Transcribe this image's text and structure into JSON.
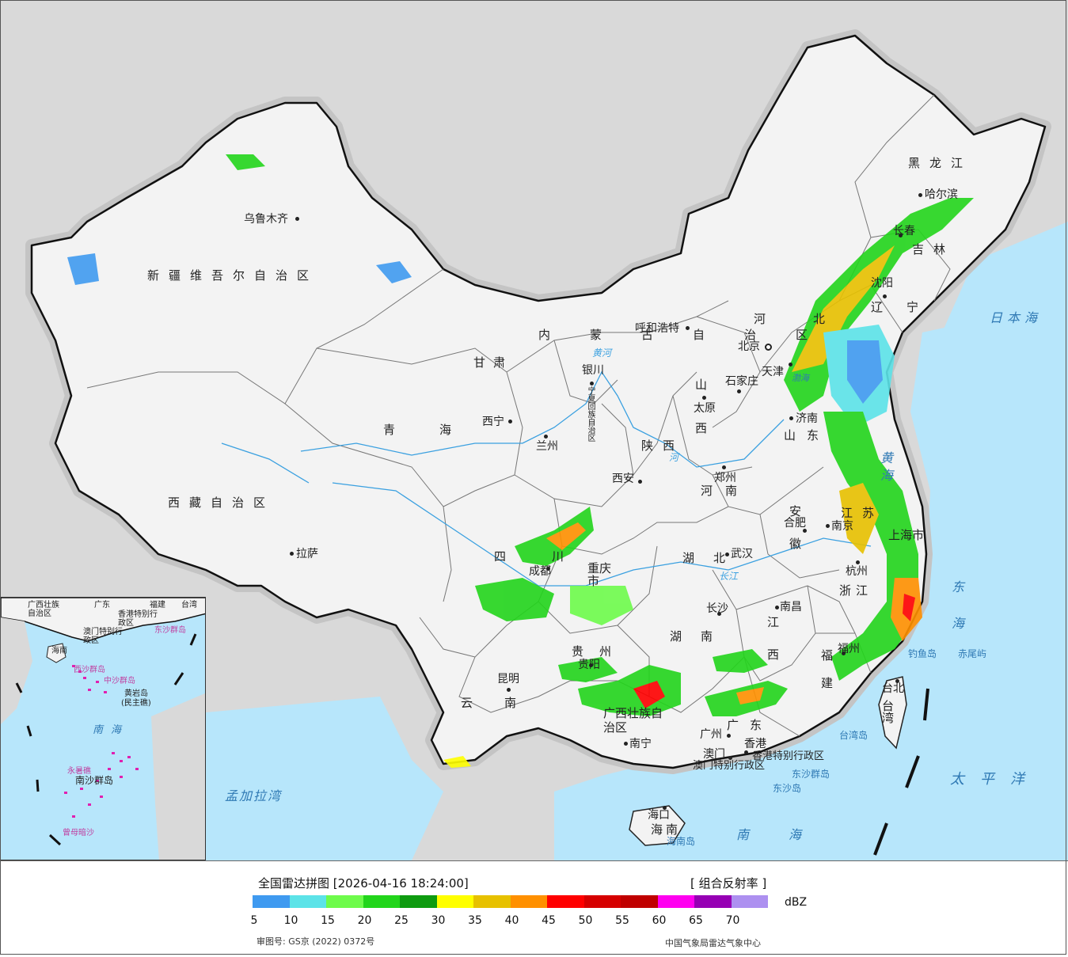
{
  "map": {
    "provinces": [
      {
        "id": "xinjiang",
        "name": "新疆维吾尔自治区"
      },
      {
        "id": "xizang",
        "name": "西藏自治区"
      },
      {
        "id": "qinghai",
        "name": "青海"
      },
      {
        "id": "gansu",
        "name": "甘肃"
      },
      {
        "id": "neimenggu",
        "name": "内蒙古自治区"
      },
      {
        "id": "heilongjiang",
        "name": "黑龙江"
      },
      {
        "id": "jilin",
        "name": "吉林"
      },
      {
        "id": "liaoning",
        "name": "辽宁"
      },
      {
        "id": "hebei",
        "name": "河北"
      },
      {
        "id": "shanxi",
        "name": "山西"
      },
      {
        "id": "shaanxi",
        "name": "陕西"
      },
      {
        "id": "henan",
        "name": "河南"
      },
      {
        "id": "shandong",
        "name": "山东"
      },
      {
        "id": "jiangsu",
        "name": "江苏"
      },
      {
        "id": "anhui",
        "name": "安徽"
      },
      {
        "id": "hubei",
        "name": "湖北"
      },
      {
        "id": "hunan",
        "name": "湖南"
      },
      {
        "id": "jiangxi",
        "name": "江西"
      },
      {
        "id": "zhejiang",
        "name": "浙江"
      },
      {
        "id": "fujian",
        "name": "福建"
      },
      {
        "id": "guangdong",
        "name": "广东"
      },
      {
        "id": "guangxi",
        "name": "广西壮族自治区"
      },
      {
        "id": "guizhou",
        "name": "贵州"
      },
      {
        "id": "yunnan",
        "name": "云南"
      },
      {
        "id": "sichuan",
        "name": "四川"
      },
      {
        "id": "chongqing",
        "name": "重庆市"
      },
      {
        "id": "ningxia",
        "name": "宁夏回族自治区"
      },
      {
        "id": "taiwan",
        "name": "台湾"
      },
      {
        "id": "hainan",
        "name": "海南"
      },
      {
        "id": "shanghai",
        "name": "上海市"
      },
      {
        "id": "hongkong",
        "name": "香港特别行政区"
      },
      {
        "id": "macao",
        "name": "澳门特别行政区"
      }
    ],
    "cities": [
      {
        "id": "urumqi",
        "name": "乌鲁木齐"
      },
      {
        "id": "lhasa",
        "name": "拉萨"
      },
      {
        "id": "xining",
        "name": "西宁"
      },
      {
        "id": "lanzhou",
        "name": "兰州"
      },
      {
        "id": "yinchuan",
        "name": "银川"
      },
      {
        "id": "hohhot",
        "name": "呼和浩特"
      },
      {
        "id": "beijing",
        "name": "北京"
      },
      {
        "id": "tianjin",
        "name": "天津"
      },
      {
        "id": "shijiazhuang",
        "name": "石家庄"
      },
      {
        "id": "taiyuan",
        "name": "太原"
      },
      {
        "id": "jinan",
        "name": "济南"
      },
      {
        "id": "shenyang",
        "name": "沈阳"
      },
      {
        "id": "changchun",
        "name": "长春"
      },
      {
        "id": "harbin",
        "name": "哈尔滨"
      },
      {
        "id": "xian",
        "name": "西安"
      },
      {
        "id": "zhengzhou",
        "name": "郑州"
      },
      {
        "id": "hefei",
        "name": "合肥"
      },
      {
        "id": "nanjing",
        "name": "南京"
      },
      {
        "id": "hangzhou",
        "name": "杭州"
      },
      {
        "id": "wuhan",
        "name": "武汉"
      },
      {
        "id": "changsha",
        "name": "长沙"
      },
      {
        "id": "nanchang",
        "name": "南昌"
      },
      {
        "id": "fuzhou",
        "name": "福州"
      },
      {
        "id": "chengdu",
        "name": "成都"
      },
      {
        "id": "guiyang",
        "name": "贵阳"
      },
      {
        "id": "kunming",
        "name": "昆明"
      },
      {
        "id": "nanning",
        "name": "南宁"
      },
      {
        "id": "guangzhou",
        "name": "广州"
      },
      {
        "id": "haikou",
        "name": "海口"
      },
      {
        "id": "taibei",
        "name": "台北"
      },
      {
        "id": "aomen",
        "name": "澳门"
      },
      {
        "id": "xianggang",
        "name": "香港"
      }
    ],
    "seas": [
      {
        "id": "japan-sea",
        "name": "日本海"
      },
      {
        "id": "yellow-sea",
        "name": "黄海"
      },
      {
        "id": "east-china-sea",
        "name": "东海"
      },
      {
        "id": "south-china-sea",
        "name": "南海"
      },
      {
        "id": "pacific",
        "name": "太平洋"
      },
      {
        "id": "bengal",
        "name": "孟加拉湾"
      },
      {
        "id": "bohai",
        "name": "渤海"
      }
    ],
    "islands": [
      {
        "id": "diaoyu",
        "name": "钓鱼岛"
      },
      {
        "id": "chiwei",
        "name": "赤尾屿"
      },
      {
        "id": "taiwan-dao",
        "name": "台湾岛"
      },
      {
        "id": "hainan-dao",
        "name": "海南岛"
      },
      {
        "id": "dongsha-qundao",
        "name": "东沙群岛"
      },
      {
        "id": "dongsha-dao",
        "name": "东沙岛"
      }
    ],
    "rivers": [
      {
        "id": "huanghe",
        "name": "黄河"
      },
      {
        "id": "changjiang",
        "name": "长江"
      },
      {
        "id": "hhe",
        "name": "河"
      }
    ]
  },
  "inset": {
    "labels": [
      {
        "id": "guangxi",
        "name": "广西壮族自治区"
      },
      {
        "id": "guangdong",
        "name": "广东"
      },
      {
        "id": "fujian",
        "name": "福建"
      },
      {
        "id": "taiwan",
        "name": "台湾"
      },
      {
        "id": "hongkong",
        "name": "香港特别行政区"
      },
      {
        "id": "macao",
        "name": "澳门特别行政区"
      },
      {
        "id": "dongsha",
        "name": "东沙群岛"
      },
      {
        "id": "hainan",
        "name": "海南"
      },
      {
        "id": "xisha",
        "name": "西沙群岛"
      },
      {
        "id": "zhongsha",
        "name": "中沙群岛"
      },
      {
        "id": "huangyan",
        "name": "黄岩岛"
      },
      {
        "id": "minzhu",
        "name": "(民主礁)"
      },
      {
        "id": "nanhai",
        "name": "南海"
      },
      {
        "id": "yongshu",
        "name": "永暑礁"
      },
      {
        "id": "nansha",
        "name": "南沙群岛"
      },
      {
        "id": "zengmu",
        "name": "曾母暗沙"
      }
    ]
  },
  "footer": {
    "title": "全国雷达拼图 [2026-04-16 18:24:00]",
    "product": "[ 组合反射率 ]",
    "unit": "dBZ",
    "approval": "审图号: GS京 (2022) 0372号",
    "credit": "中国气象局雷达气象中心"
  },
  "legend": {
    "colors": [
      "#3f9af0",
      "#5ce3e8",
      "#6efb4b",
      "#22d51b",
      "#0e9b10",
      "#ffff00",
      "#e7c100",
      "#ff9000",
      "#ff0000",
      "#d60000",
      "#c00000",
      "#ff00f0",
      "#9600b4",
      "#ad90f0"
    ],
    "ticks": [
      "5",
      "10",
      "15",
      "20",
      "25",
      "30",
      "35",
      "40",
      "45",
      "50",
      "55",
      "60",
      "65",
      "70"
    ]
  }
}
